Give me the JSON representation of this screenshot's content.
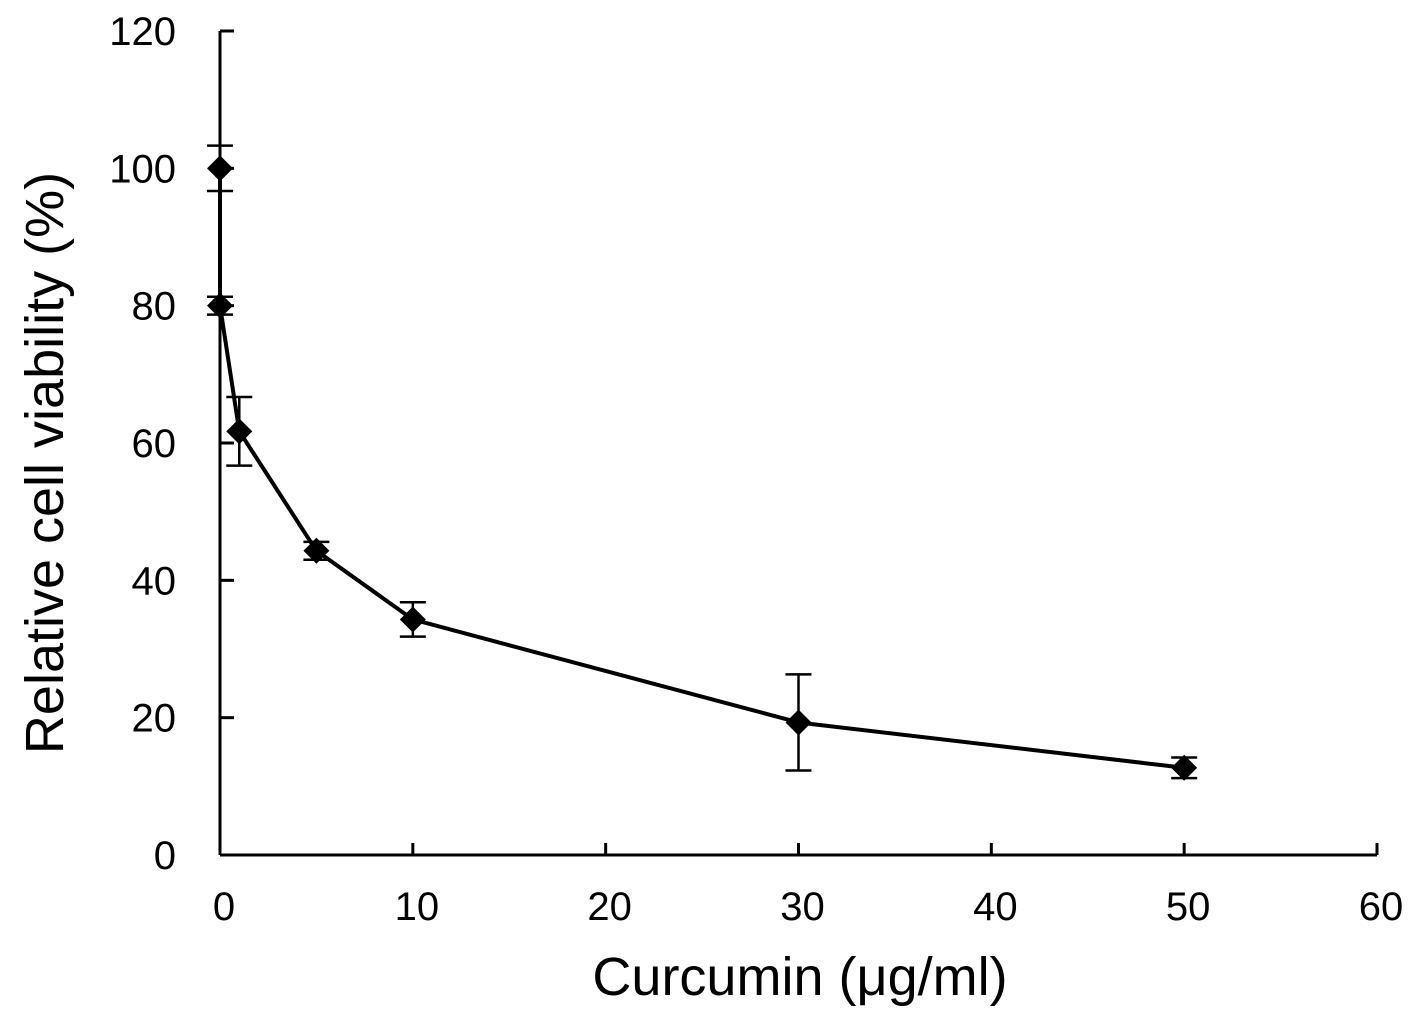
{
  "chart_data": {
    "type": "line",
    "xlabel": "Curcumin (μg/ml)",
    "ylabel": "Relative cell viability (%)",
    "xlim": [
      0,
      60
    ],
    "ylim": [
      0,
      120
    ],
    "xticks": [
      0,
      10,
      20,
      30,
      40,
      50,
      60
    ],
    "yticks": [
      0,
      20,
      40,
      60,
      80,
      100,
      120
    ],
    "grid": false,
    "legend": "none",
    "marker": "diamond",
    "color": "#000000",
    "series": [
      {
        "x": [
          0,
          0,
          1,
          5,
          10,
          30,
          50
        ],
        "y": [
          100,
          80,
          61.7,
          44.3,
          34.3,
          19.3,
          12.7
        ],
        "error": [
          3.3,
          1.3,
          5,
          1.3,
          2.5,
          7,
          1.5
        ]
      }
    ]
  }
}
